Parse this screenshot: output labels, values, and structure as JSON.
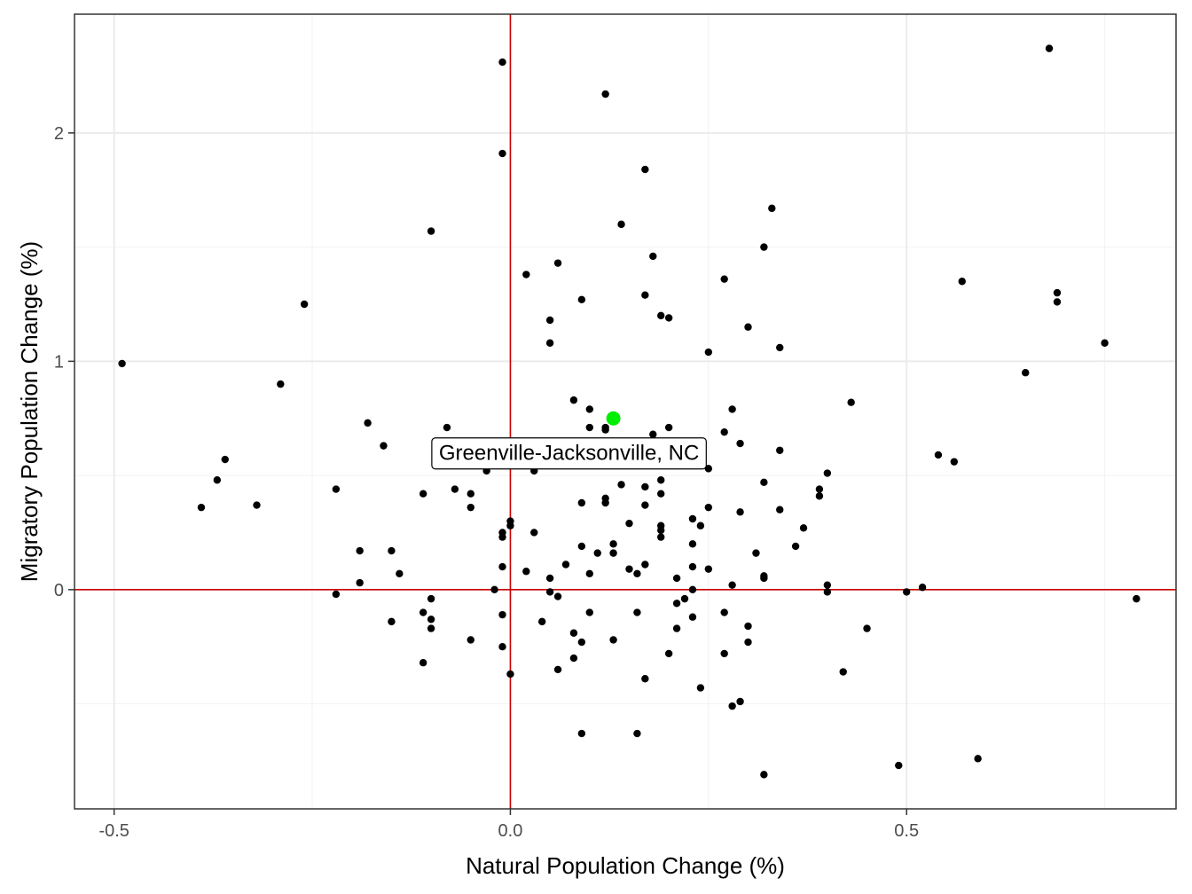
{
  "chart_data": {
    "type": "scatter",
    "title": "",
    "xlabel": "Natural Population Change (%)",
    "ylabel": "Migratory Population Change (%)",
    "xlim": [
      -0.55,
      0.84
    ],
    "ylim": [
      -0.96,
      2.52
    ],
    "x_ticks": [
      -0.5,
      0.0,
      0.5
    ],
    "x_tick_labels": [
      "-0.5",
      "0.0",
      "0.5"
    ],
    "y_ticks": [
      0,
      1,
      2
    ],
    "y_tick_labels": [
      "0",
      "1",
      "2"
    ],
    "x_minor_ticks": [
      -0.25,
      0.25,
      0.75
    ],
    "y_minor_ticks": [
      -0.5,
      0.5,
      1.5
    ],
    "grid": true,
    "reference_lines": {
      "x": 0,
      "y": 0,
      "color": "#cc0000"
    },
    "point_color": "#000000",
    "highlight_color": "#00ee00",
    "highlight": {
      "label": "Greenville-Jacksonville, NC",
      "x": 0.13,
      "y": 0.75
    },
    "points": [
      [
        -0.01,
        2.31
      ],
      [
        0.68,
        2.37
      ],
      [
        0.12,
        2.17
      ],
      [
        -0.01,
        1.91
      ],
      [
        0.17,
        1.84
      ],
      [
        0.33,
        1.67
      ],
      [
        0.14,
        1.6
      ],
      [
        -0.1,
        1.57
      ],
      [
        0.32,
        1.5
      ],
      [
        0.18,
        1.46
      ],
      [
        0.06,
        1.43
      ],
      [
        0.02,
        1.38
      ],
      [
        0.27,
        1.36
      ],
      [
        0.57,
        1.35
      ],
      [
        0.69,
        1.3
      ],
      [
        0.17,
        1.29
      ],
      [
        0.09,
        1.27
      ],
      [
        -0.26,
        1.25
      ],
      [
        0.69,
        1.26
      ],
      [
        0.19,
        1.2
      ],
      [
        0.2,
        1.19
      ],
      [
        0.05,
        1.18
      ],
      [
        0.3,
        1.15
      ],
      [
        0.05,
        1.08
      ],
      [
        0.75,
        1.08
      ],
      [
        0.34,
        1.06
      ],
      [
        0.25,
        1.04
      ],
      [
        -0.49,
        0.99
      ],
      [
        0.65,
        0.95
      ],
      [
        -0.29,
        0.9
      ],
      [
        0.08,
        0.83
      ],
      [
        0.43,
        0.82
      ],
      [
        0.1,
        0.79
      ],
      [
        0.28,
        0.79
      ],
      [
        -0.18,
        0.73
      ],
      [
        -0.08,
        0.71
      ],
      [
        0.1,
        0.71
      ],
      [
        0.12,
        0.71
      ],
      [
        0.12,
        0.7
      ],
      [
        0.2,
        0.71
      ],
      [
        0.27,
        0.69
      ],
      [
        0.18,
        0.68
      ],
      [
        -0.16,
        0.63
      ],
      [
        0.29,
        0.64
      ],
      [
        0.34,
        0.61
      ],
      [
        0.54,
        0.59
      ],
      [
        -0.36,
        0.57
      ],
      [
        0.56,
        0.56
      ],
      [
        0.4,
        0.51
      ],
      [
        0.09,
        0.55
      ],
      [
        0.03,
        0.52
      ],
      [
        0.25,
        0.53
      ],
      [
        -0.03,
        0.52
      ],
      [
        -0.37,
        0.48
      ],
      [
        0.19,
        0.48
      ],
      [
        0.32,
        0.47
      ],
      [
        0.14,
        0.46
      ],
      [
        0.17,
        0.45
      ],
      [
        -0.22,
        0.44
      ],
      [
        -0.07,
        0.44
      ],
      [
        0.39,
        0.44
      ],
      [
        -0.11,
        0.42
      ],
      [
        -0.05,
        0.42
      ],
      [
        0.19,
        0.42
      ],
      [
        0.39,
        0.41
      ],
      [
        0.12,
        0.4
      ],
      [
        0.09,
        0.38
      ],
      [
        0.12,
        0.38
      ],
      [
        0.17,
        0.37
      ],
      [
        -0.32,
        0.37
      ],
      [
        -0.39,
        0.36
      ],
      [
        -0.05,
        0.36
      ],
      [
        0.25,
        0.36
      ],
      [
        0.34,
        0.35
      ],
      [
        0.29,
        0.34
      ],
      [
        0.0,
        0.3
      ],
      [
        0.23,
        0.31
      ],
      [
        0.15,
        0.29
      ],
      [
        0.0,
        0.28
      ],
      [
        0.24,
        0.28
      ],
      [
        0.19,
        0.28
      ],
      [
        0.19,
        0.26
      ],
      [
        0.37,
        0.27
      ],
      [
        -0.01,
        0.25
      ],
      [
        0.03,
        0.25
      ],
      [
        -0.01,
        0.23
      ],
      [
        0.19,
        0.23
      ],
      [
        0.13,
        0.2
      ],
      [
        0.09,
        0.19
      ],
      [
        0.23,
        0.2
      ],
      [
        0.36,
        0.19
      ],
      [
        -0.19,
        0.17
      ],
      [
        -0.15,
        0.17
      ],
      [
        0.11,
        0.16
      ],
      [
        0.13,
        0.16
      ],
      [
        0.31,
        0.16
      ],
      [
        0.07,
        0.11
      ],
      [
        0.17,
        0.11
      ],
      [
        -0.01,
        0.1
      ],
      [
        0.15,
        0.09
      ],
      [
        0.23,
        0.1
      ],
      [
        0.25,
        0.09
      ],
      [
        0.02,
        0.08
      ],
      [
        0.1,
        0.07
      ],
      [
        0.16,
        0.07
      ],
      [
        -0.14,
        0.07
      ],
      [
        0.32,
        0.06
      ],
      [
        0.32,
        0.05
      ],
      [
        0.05,
        0.05
      ],
      [
        0.21,
        0.05
      ],
      [
        -0.19,
        0.03
      ],
      [
        0.28,
        0.02
      ],
      [
        0.4,
        0.02
      ],
      [
        0.52,
        0.01
      ],
      [
        -0.02,
        0.0
      ],
      [
        0.23,
        0.0
      ],
      [
        0.05,
        -0.01
      ],
      [
        0.4,
        -0.01
      ],
      [
        0.5,
        -0.01
      ],
      [
        -0.22,
        -0.02
      ],
      [
        0.06,
        -0.03
      ],
      [
        0.22,
        -0.04
      ],
      [
        0.79,
        -0.04
      ],
      [
        -0.1,
        -0.04
      ],
      [
        0.21,
        -0.06
      ],
      [
        -0.11,
        -0.1
      ],
      [
        -0.01,
        -0.11
      ],
      [
        0.1,
        -0.1
      ],
      [
        0.16,
        -0.1
      ],
      [
        0.27,
        -0.1
      ],
      [
        0.23,
        -0.12
      ],
      [
        -0.1,
        -0.13
      ],
      [
        -0.15,
        -0.14
      ],
      [
        0.04,
        -0.14
      ],
      [
        0.3,
        -0.16
      ],
      [
        -0.1,
        -0.17
      ],
      [
        0.21,
        -0.17
      ],
      [
        0.45,
        -0.17
      ],
      [
        0.08,
        -0.19
      ],
      [
        -0.05,
        -0.22
      ],
      [
        0.09,
        -0.23
      ],
      [
        0.13,
        -0.22
      ],
      [
        0.3,
        -0.23
      ],
      [
        -0.01,
        -0.25
      ],
      [
        0.2,
        -0.28
      ],
      [
        0.27,
        -0.28
      ],
      [
        0.08,
        -0.3
      ],
      [
        -0.11,
        -0.32
      ],
      [
        0.06,
        -0.35
      ],
      [
        -0.0,
        -0.37
      ],
      [
        0.42,
        -0.36
      ],
      [
        0.17,
        -0.39
      ],
      [
        0.24,
        -0.43
      ],
      [
        0.29,
        -0.49
      ],
      [
        0.28,
        -0.51
      ],
      [
        0.09,
        -0.63
      ],
      [
        0.16,
        -0.63
      ],
      [
        0.59,
        -0.74
      ],
      [
        0.49,
        -0.77
      ],
      [
        0.32,
        -0.81
      ]
    ]
  }
}
